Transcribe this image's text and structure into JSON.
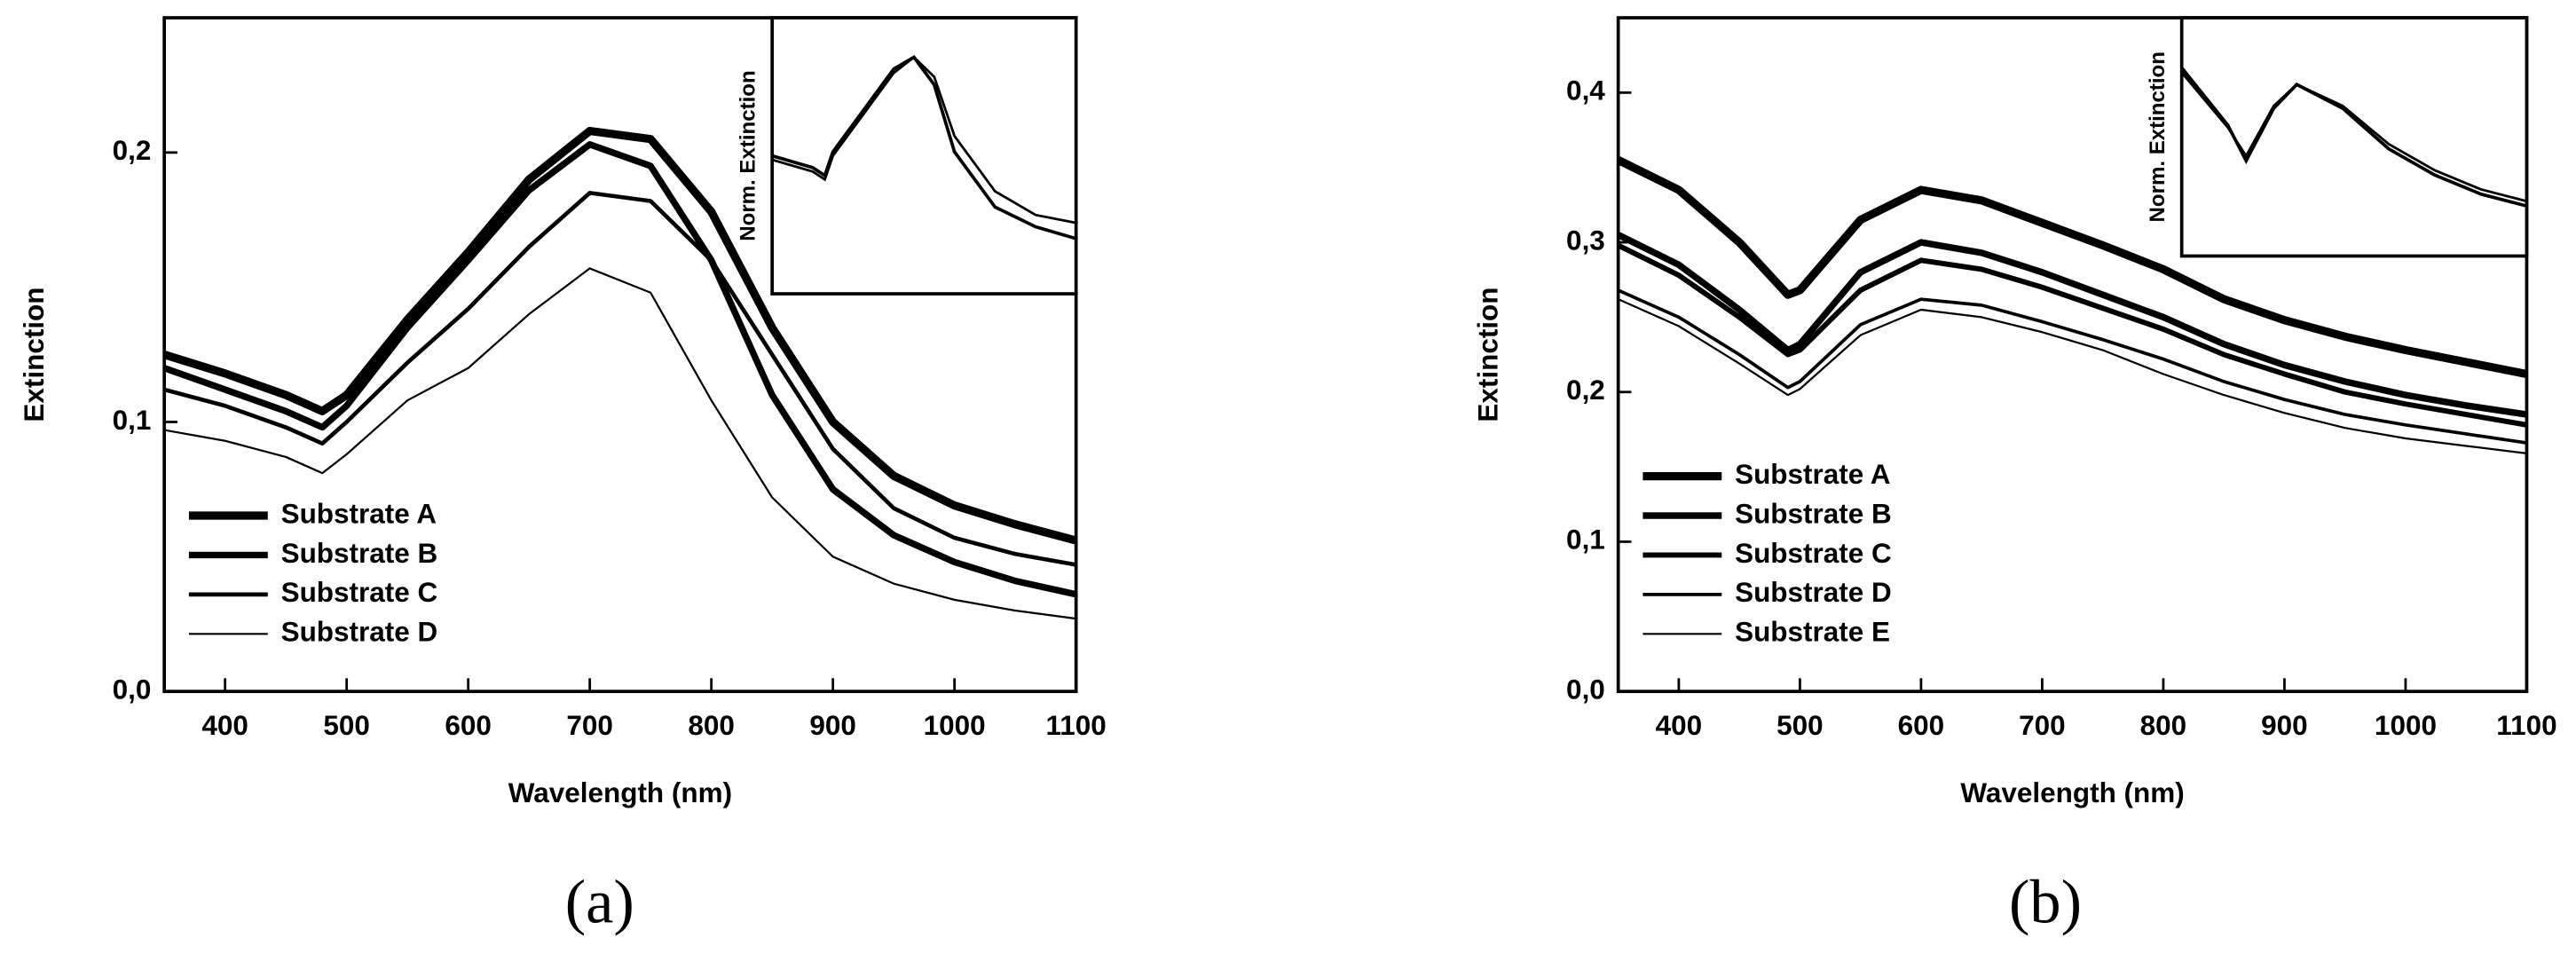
{
  "chart_data": [
    {
      "type": "line",
      "caption": "(a)",
      "xlabel": "Wavelength (nm)",
      "ylabel": "Extinction",
      "xlim": [
        350,
        1100
      ],
      "xticks": [
        400,
        500,
        600,
        700,
        800,
        900,
        1000,
        1100
      ],
      "ylim": [
        0,
        0.25
      ],
      "yticks": [
        {
          "value": 0,
          "label": "0,0"
        },
        {
          "value": 0.1,
          "label": "0,1"
        },
        {
          "value": 0.2,
          "label": "0,2"
        }
      ],
      "legend": "lower left",
      "x": [
        350,
        400,
        450,
        480,
        500,
        550,
        600,
        650,
        700,
        750,
        800,
        850,
        900,
        950,
        1000,
        1050,
        1100
      ],
      "series": [
        {
          "name": "Substrate A",
          "color": "#000000",
          "width": 5,
          "values": [
            0.125,
            0.118,
            0.11,
            0.104,
            0.11,
            0.138,
            0.163,
            0.19,
            0.208,
            0.205,
            0.178,
            0.135,
            0.1,
            0.08,
            0.069,
            0.062,
            0.056
          ]
        },
        {
          "name": "Substrate B",
          "color": "#000000",
          "width": 4,
          "values": [
            0.12,
            0.112,
            0.104,
            0.098,
            0.106,
            0.135,
            0.16,
            0.186,
            0.203,
            0.195,
            0.16,
            0.11,
            0.075,
            0.058,
            0.048,
            0.041,
            0.036
          ]
        },
        {
          "name": "Substrate C",
          "color": "#000000",
          "width": 2.5,
          "values": [
            0.112,
            0.106,
            0.098,
            0.092,
            0.1,
            0.122,
            0.142,
            0.165,
            0.185,
            0.182,
            0.16,
            0.125,
            0.09,
            0.068,
            0.057,
            0.051,
            0.047
          ]
        },
        {
          "name": "Substrate D",
          "color": "#000000",
          "width": 1.2,
          "values": [
            0.097,
            0.093,
            0.087,
            0.081,
            0.088,
            0.108,
            0.12,
            0.14,
            0.157,
            0.148,
            0.108,
            0.072,
            0.05,
            0.04,
            0.034,
            0.03,
            0.027
          ]
        }
      ],
      "inset": {
        "ylabel": "Norm. Extinction",
        "xlim": [
          350,
          1100
        ],
        "ylim": [
          0.4,
          1.1
        ],
        "x": [
          350,
          450,
          480,
          500,
          550,
          600,
          650,
          700,
          750,
          800,
          900,
          1000,
          1100
        ],
        "series": [
          {
            "color": "#000000",
            "width": 2,
            "values": [
              0.75,
              0.72,
              0.7,
              0.76,
              0.83,
              0.9,
              0.97,
              1.0,
              0.93,
              0.76,
              0.62,
              0.57,
              0.54
            ]
          },
          {
            "color": "#000000",
            "width": 1.5,
            "values": [
              0.74,
              0.71,
              0.69,
              0.75,
              0.82,
              0.89,
              0.96,
              1.0,
              0.95,
              0.8,
              0.66,
              0.6,
              0.58
            ]
          }
        ]
      }
    },
    {
      "type": "line",
      "caption": "(b)",
      "xlabel": "Wavelength (nm)",
      "ylabel": "Extinction",
      "xlim": [
        350,
        1100
      ],
      "xticks": [
        400,
        500,
        600,
        700,
        800,
        900,
        1000,
        1100
      ],
      "ylim": [
        0,
        0.45
      ],
      "yticks": [
        {
          "value": 0,
          "label": "0,0"
        },
        {
          "value": 0.1,
          "label": "0,1"
        },
        {
          "value": 0.2,
          "label": "0,2"
        },
        {
          "value": 0.3,
          "label": "0,3"
        },
        {
          "value": 0.4,
          "label": "0,4"
        }
      ],
      "legend": "lower left",
      "x": [
        350,
        400,
        450,
        490,
        500,
        550,
        600,
        650,
        700,
        750,
        800,
        850,
        900,
        950,
        1000,
        1050,
        1100
      ],
      "series": [
        {
          "name": "Substrate A",
          "color": "#000000",
          "width": 5,
          "values": [
            0.355,
            0.335,
            0.3,
            0.265,
            0.268,
            0.315,
            0.335,
            0.328,
            0.313,
            0.298,
            0.282,
            0.262,
            0.248,
            0.237,
            0.228,
            0.22,
            0.212
          ]
        },
        {
          "name": "Substrate B",
          "color": "#000000",
          "width": 4,
          "values": [
            0.305,
            0.285,
            0.255,
            0.228,
            0.232,
            0.28,
            0.3,
            0.293,
            0.28,
            0.265,
            0.25,
            0.232,
            0.218,
            0.207,
            0.198,
            0.191,
            0.185
          ]
        },
        {
          "name": "Substrate C",
          "color": "#000000",
          "width": 3.2,
          "values": [
            0.298,
            0.278,
            0.25,
            0.225,
            0.228,
            0.268,
            0.288,
            0.282,
            0.27,
            0.256,
            0.242,
            0.225,
            0.212,
            0.2,
            0.192,
            0.185,
            0.178
          ]
        },
        {
          "name": "Substrate D",
          "color": "#000000",
          "width": 2,
          "values": [
            0.268,
            0.25,
            0.225,
            0.203,
            0.207,
            0.245,
            0.262,
            0.258,
            0.247,
            0.235,
            0.222,
            0.207,
            0.195,
            0.185,
            0.178,
            0.172,
            0.166
          ]
        },
        {
          "name": "Substrate E",
          "color": "#000000",
          "width": 1.2,
          "values": [
            0.262,
            0.244,
            0.219,
            0.198,
            0.202,
            0.238,
            0.255,
            0.25,
            0.24,
            0.228,
            0.212,
            0.198,
            0.186,
            0.176,
            0.169,
            0.164,
            0.159
          ]
        }
      ],
      "inset": {
        "ylabel": "Norm. Extinction",
        "xlim": [
          350,
          1100
        ],
        "ylim": [
          0,
          1
        ],
        "x": [
          350,
          450,
          490,
          550,
          600,
          700,
          800,
          900,
          1000,
          1100
        ],
        "series": [
          {
            "color": "#000000",
            "width": 2,
            "values": [
              0.79,
              0.55,
              0.4,
              0.62,
              0.72,
              0.62,
              0.45,
              0.34,
              0.26,
              0.21
            ]
          },
          {
            "color": "#000000",
            "width": 1.5,
            "values": [
              0.77,
              0.54,
              0.42,
              0.63,
              0.72,
              0.63,
              0.47,
              0.36,
              0.28,
              0.23
            ]
          }
        ]
      }
    }
  ]
}
